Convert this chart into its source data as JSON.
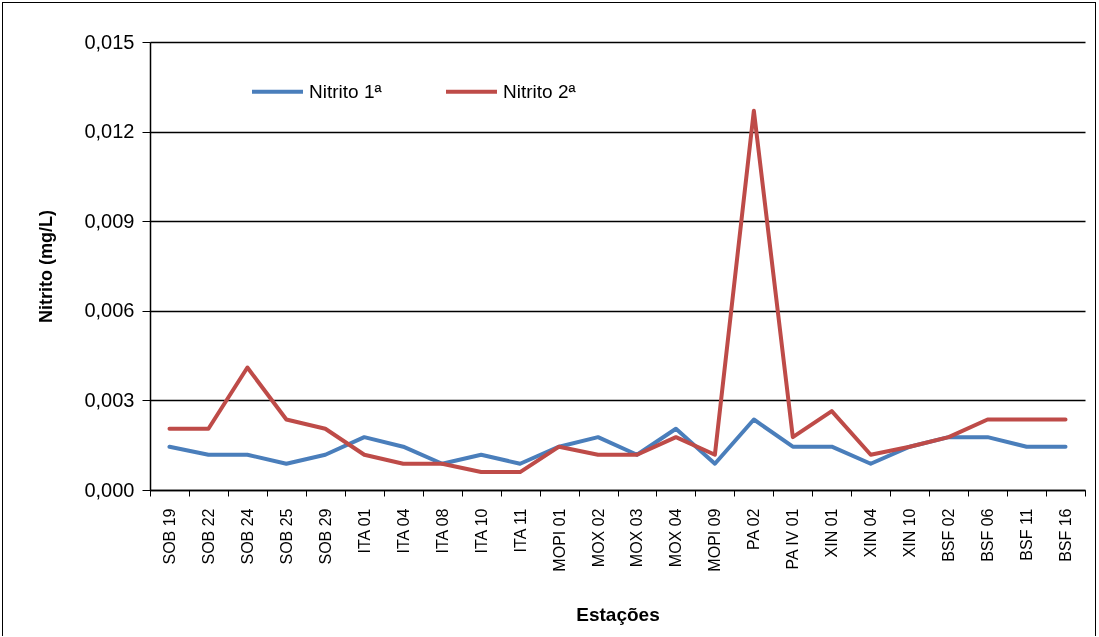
{
  "chart_data": {
    "type": "line",
    "xlabel": "Estações",
    "ylabel": "Nitrito (mg/L)",
    "categories": [
      "SOB 19",
      "SOB 22",
      "SOB 24",
      "SOB 25",
      "SOB 29",
      "ITA 01",
      "ITA 04",
      "ITA 08",
      "ITA 10",
      "ITA 11",
      "MOPI 01",
      "MOX 02",
      "MOX 03",
      "MOX 04",
      "MOPI 09",
      "PA 02",
      "PA IV 01",
      "XIN 01",
      "XIN 04",
      "XIN 10",
      "BSF 02",
      "BSF 06",
      "BSF 11",
      "BSF 16"
    ],
    "series": [
      {
        "name": "Nitrito 1ª",
        "color": "#4a7ebb",
        "values": [
          0.00145,
          0.00118,
          0.00118,
          0.00088,
          0.00118,
          0.00177,
          0.00145,
          0.00088,
          0.00118,
          0.00088,
          0.00145,
          0.00177,
          0.00118,
          0.00205,
          0.00088,
          0.00236,
          0.00145,
          0.00145,
          0.00088,
          0.00145,
          0.00177,
          0.00177,
          0.00145,
          0.00145
        ]
      },
      {
        "name": "Nitrito 2ª",
        "color": "#be4b48",
        "values": [
          0.00205,
          0.00205,
          0.0041,
          0.00236,
          0.00205,
          0.00118,
          0.00088,
          0.00088,
          0.0006,
          0.0006,
          0.00145,
          0.00118,
          0.00118,
          0.00177,
          0.00118,
          0.0127,
          0.00177,
          0.00264,
          0.00118,
          0.00145,
          0.00177,
          0.00236,
          0.00236,
          0.00236
        ]
      }
    ],
    "ylim": [
      0,
      0.015
    ],
    "yticks": [
      {
        "value": 0,
        "label": "0,000"
      },
      {
        "value": 0.003,
        "label": "0,003"
      },
      {
        "value": 0.006,
        "label": "0,006"
      },
      {
        "value": 0.009,
        "label": "0,009"
      },
      {
        "value": 0.012,
        "label": "0,012"
      },
      {
        "value": 0.015,
        "label": "0,015"
      }
    ],
    "grid": "y",
    "legend": "top left",
    "marker": "none",
    "line_style": "solid"
  }
}
